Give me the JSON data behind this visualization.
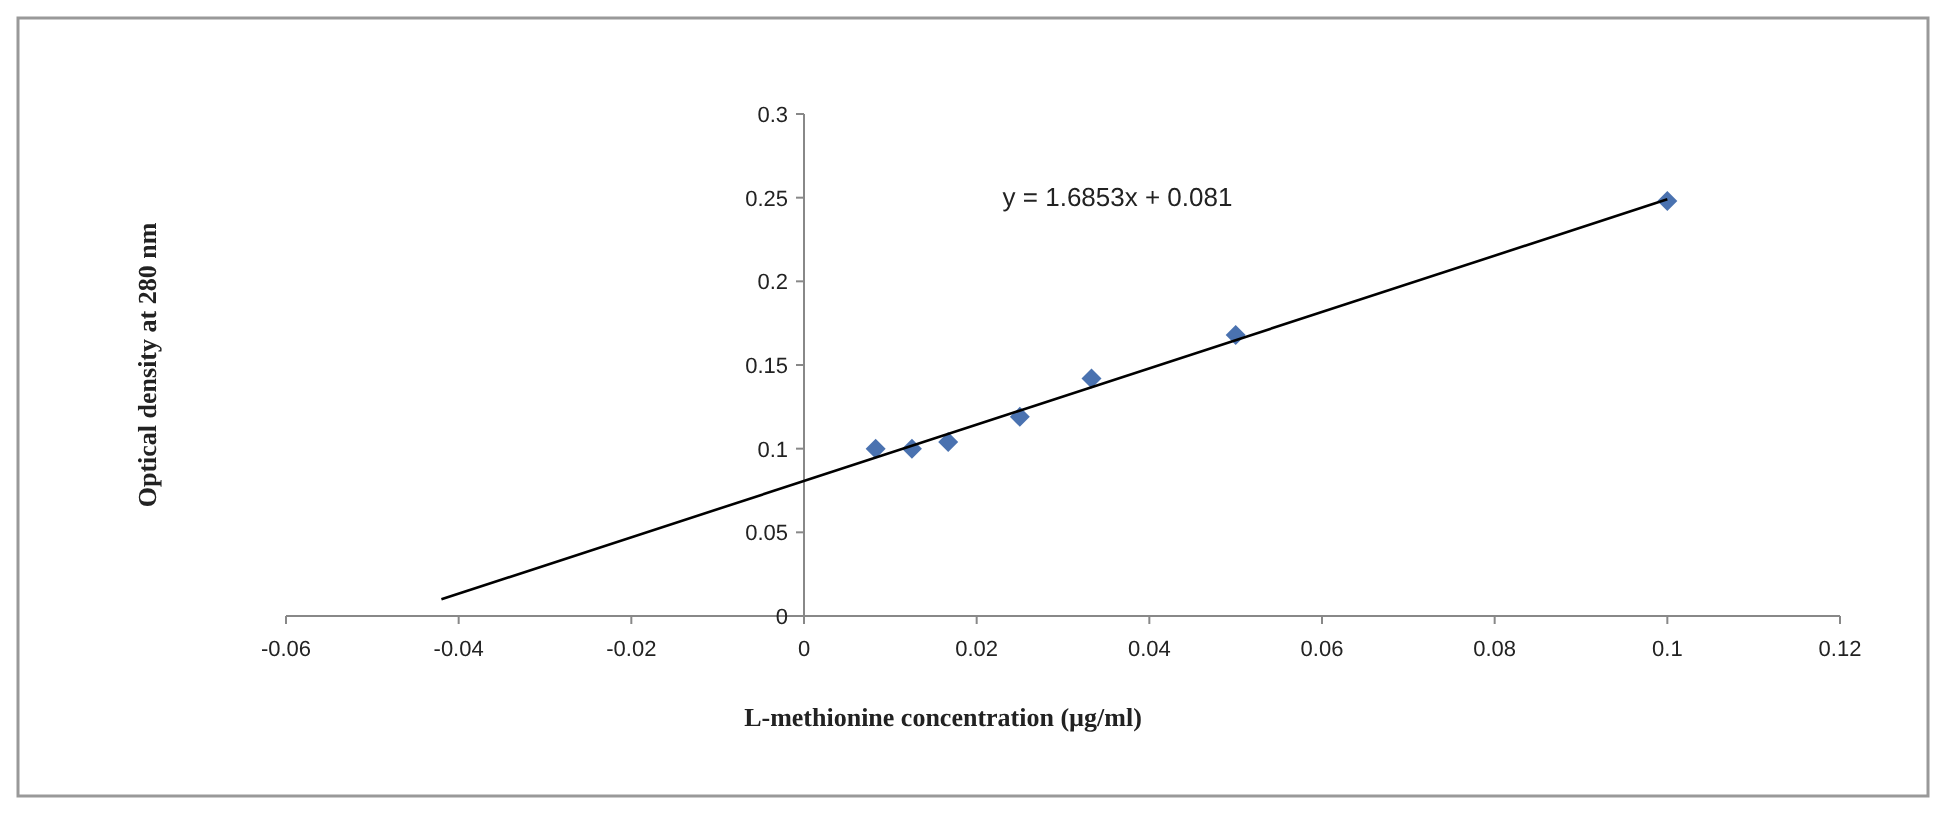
{
  "chart_data": {
    "type": "scatter",
    "xlabel": "L-methionine concentration (µg/ml)",
    "ylabel": "Optical density at 280 nm",
    "annotations": [
      "y = 1.6853x + 0.081"
    ],
    "xlim": [
      -0.06,
      0.12
    ],
    "xticks": [
      -0.06,
      -0.04,
      -0.02,
      0,
      0.02,
      0.04,
      0.06,
      0.08,
      0.1,
      0.12
    ],
    "ylim": [
      0,
      0.3
    ],
    "yticks": [
      0,
      0.05,
      0.1,
      0.15,
      0.2,
      0.25,
      0.3
    ],
    "grid": false,
    "marker": "diamond",
    "series": [
      {
        "color": "#4a72b0",
        "x": [
          0.0083,
          0.0125,
          0.0167,
          0.025,
          0.0333,
          0.05,
          0.1
        ],
        "values": [
          0.1,
          0.1,
          0.104,
          0.119,
          0.142,
          0.168,
          0.248
        ]
      },
      {
        "type": "line",
        "color": "#000000",
        "marker": "none",
        "x": [
          -0.042,
          0.1
        ],
        "values": [
          0.01,
          0.249
        ]
      }
    ]
  }
}
